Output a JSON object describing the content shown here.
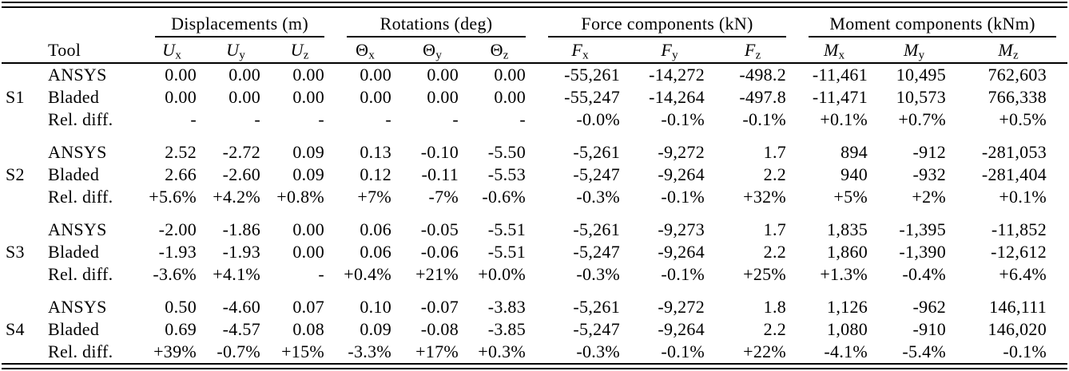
{
  "table": {
    "header": {
      "tool": "Tool",
      "groups": [
        {
          "label": "Displacements (m)",
          "subcols": [
            {
              "base": "U",
              "sub": "x"
            },
            {
              "base": "U",
              "sub": "y"
            },
            {
              "base": "U",
              "sub": "z"
            }
          ]
        },
        {
          "label": "Rotations (deg)",
          "subcols": [
            {
              "base": "Θ",
              "sub": "x"
            },
            {
              "base": "Θ",
              "sub": "y"
            },
            {
              "base": "Θ",
              "sub": "z"
            }
          ]
        },
        {
          "label": "Force components (kN)",
          "subcols": [
            {
              "base": "F",
              "sub": "x"
            },
            {
              "base": "F",
              "sub": "y"
            },
            {
              "base": "F",
              "sub": "z"
            }
          ]
        },
        {
          "label": "Moment components (kNm)",
          "subcols": [
            {
              "base": "M",
              "sub": "x"
            },
            {
              "base": "M",
              "sub": "y"
            },
            {
              "base": "M",
              "sub": "z"
            }
          ]
        }
      ]
    },
    "sections": [
      {
        "id": "S1",
        "rows": [
          {
            "tool": "ANSYS",
            "values": [
              "0.00",
              "0.00",
              "0.00",
              "0.00",
              "0.00",
              "0.00",
              "-55,261",
              "-14,272",
              "-498.2",
              "-11,461",
              "10,495",
              "762,603"
            ]
          },
          {
            "tool": "Bladed",
            "values": [
              "0.00",
              "0.00",
              "0.00",
              "0.00",
              "0.00",
              "0.00",
              "-55,247",
              "-14,264",
              "-497.8",
              "-11,471",
              "10,573",
              "766,338"
            ]
          },
          {
            "tool": "Rel. diff.",
            "values": [
              "-",
              "-",
              "-",
              "-",
              "-",
              "-",
              "-0.0%",
              "-0.1%",
              "-0.1%",
              "+0.1%",
              "+0.7%",
              "+0.5%"
            ]
          }
        ]
      },
      {
        "id": "S2",
        "rows": [
          {
            "tool": "ANSYS",
            "values": [
              "2.52",
              "-2.72",
              "0.09",
              "0.13",
              "-0.10",
              "-5.50",
              "-5,261",
              "-9,272",
              "1.7",
              "894",
              "-912",
              "-281,053"
            ]
          },
          {
            "tool": "Bladed",
            "values": [
              "2.66",
              "-2.60",
              "0.09",
              "0.12",
              "-0.11",
              "-5.53",
              "-5,247",
              "-9,264",
              "2.2",
              "940",
              "-932",
              "-281,404"
            ]
          },
          {
            "tool": "Rel. diff.",
            "values": [
              "+5.6%",
              "+4.2%",
              "+0.8%",
              "+7%",
              "-7%",
              "-0.6%",
              "-0.3%",
              "-0.1%",
              "+32%",
              "+5%",
              "+2%",
              "+0.1%"
            ]
          }
        ]
      },
      {
        "id": "S3",
        "rows": [
          {
            "tool": "ANSYS",
            "values": [
              "-2.00",
              "-1.86",
              "0.00",
              "0.06",
              "-0.05",
              "-5.51",
              "-5,261",
              "-9,273",
              "1.7",
              "1,835",
              "-1,395",
              "-11,852"
            ]
          },
          {
            "tool": "Bladed",
            "values": [
              "-1.93",
              "-1.93",
              "0.00",
              "0.06",
              "-0.06",
              "-5.51",
              "-5,247",
              "-9,264",
              "2.2",
              "1,860",
              "-1,390",
              "-12,612"
            ]
          },
          {
            "tool": "Rel. diff.",
            "values": [
              "-3.6%",
              "+4.1%",
              "-",
              "+0.4%",
              "+21%",
              "+0.0%",
              "-0.3%",
              "-0.1%",
              "+25%",
              "+1.3%",
              "-0.4%",
              "+6.4%"
            ]
          }
        ]
      },
      {
        "id": "S4",
        "rows": [
          {
            "tool": "ANSYS",
            "values": [
              "0.50",
              "-4.60",
              "0.07",
              "0.10",
              "-0.07",
              "-3.83",
              "-5,261",
              "-9,272",
              "1.8",
              "1,126",
              "-962",
              "146,111"
            ]
          },
          {
            "tool": "Bladed",
            "values": [
              "0.69",
              "-4.57",
              "0.08",
              "0.09",
              "-0.08",
              "-3.85",
              "-5,247",
              "-9,264",
              "2.2",
              "1,080",
              "-910",
              "146,020"
            ]
          },
          {
            "tool": "Rel. diff.",
            "values": [
              "+39%",
              "-0.7%",
              "+15%",
              "-3.3%",
              "+17%",
              "+0.3%",
              "-0.3%",
              "-0.1%",
              "+22%",
              "-4.1%",
              "-5.4%",
              "-0.1%"
            ]
          }
        ]
      }
    ]
  }
}
